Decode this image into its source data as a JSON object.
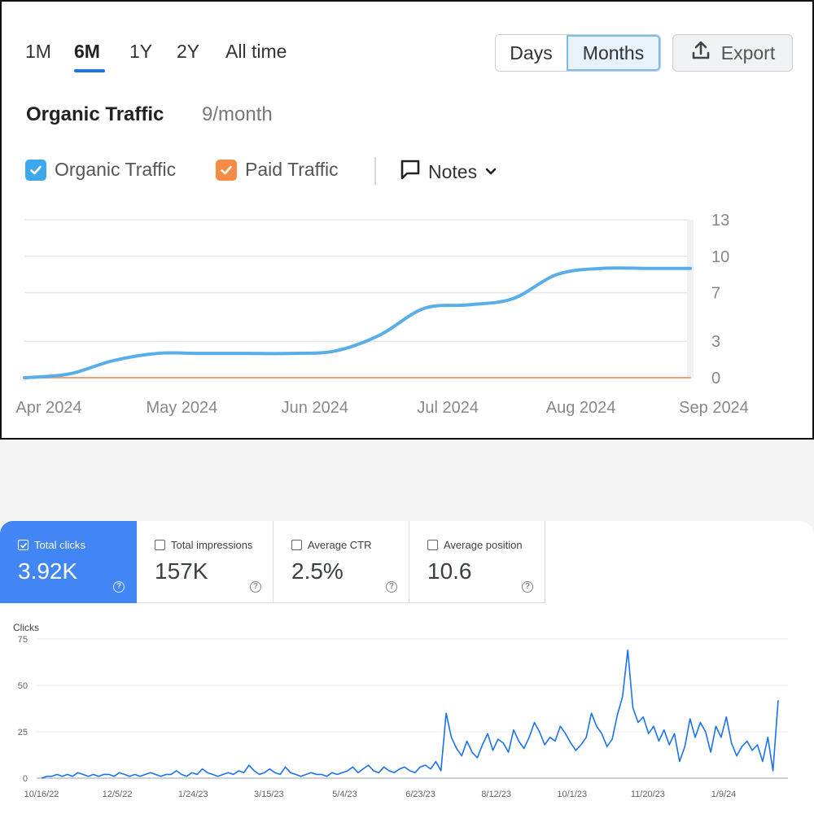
{
  "top": {
    "range_tabs": [
      "1M",
      "6M",
      "1Y",
      "2Y",
      "All time"
    ],
    "active_range": "6M",
    "granularity": {
      "days": "Days",
      "months": "Months",
      "selected": "Months"
    },
    "export_label": "Export",
    "title": "Organic Traffic",
    "subtitle": "9/month",
    "legend": {
      "organic": {
        "label": "Organic Traffic",
        "color": "#3ea8ec",
        "checked": true
      },
      "paid": {
        "label": "Paid Traffic",
        "color": "#f58b45",
        "checked": true
      }
    },
    "notes_label": "Notes",
    "accent": "#1a73e8"
  },
  "bottom": {
    "metrics": [
      {
        "label": "Total clicks",
        "value": "3.92K",
        "checked": true
      },
      {
        "label": "Total impressions",
        "value": "157K",
        "checked": false
      },
      {
        "label": "Average CTR",
        "value": "2.5%",
        "checked": false
      },
      {
        "label": "Average position",
        "value": "10.6",
        "checked": false
      }
    ],
    "active_color": "#4285f4"
  },
  "chart_data": [
    {
      "type": "line",
      "x_ticks": [
        "Apr 2024",
        "May 2024",
        "Jun 2024",
        "Jul 2024",
        "Aug 2024",
        "Sep 2024"
      ],
      "y_ticks": [
        0,
        3,
        7,
        10,
        13
      ],
      "ylim": [
        0,
        13
      ],
      "grid": true,
      "axis_side": "right",
      "series": [
        {
          "name": "Organic Traffic",
          "color": "#5aaee8",
          "values": [
            0,
            0.3,
            1.4,
            2.0,
            2.0,
            2.0,
            2.0,
            2.2,
            3.5,
            5.7,
            6.0,
            6.5,
            8.5,
            9.0,
            9.0,
            9.0
          ]
        },
        {
          "name": "Paid Traffic",
          "color": "#f2a07a",
          "values": [
            0,
            0,
            0,
            0,
            0,
            0,
            0,
            0,
            0,
            0,
            0,
            0,
            0,
            0,
            0,
            0
          ]
        }
      ]
    },
    {
      "type": "line",
      "ylabel": "Clicks",
      "x_ticks": [
        "10/16/22",
        "12/5/22",
        "1/24/23",
        "3/15/23",
        "5/4/23",
        "6/23/23",
        "8/12/23",
        "10/1/23",
        "11/20/23",
        "1/9/24"
      ],
      "y_ticks": [
        0,
        25,
        50,
        75
      ],
      "ylim": [
        0,
        75
      ],
      "grid": true,
      "series": [
        {
          "name": "Clicks",
          "color": "#1a73e8",
          "values": [
            0,
            1,
            1,
            2,
            1,
            2,
            1,
            3,
            2,
            1,
            2,
            1,
            2,
            2,
            1,
            3,
            2,
            1,
            2,
            1,
            2,
            3,
            2,
            1,
            2,
            2,
            4,
            2,
            1,
            3,
            2,
            5,
            3,
            2,
            1,
            2,
            3,
            2,
            4,
            3,
            7,
            4,
            2,
            3,
            5,
            3,
            2,
            6,
            3,
            2,
            1,
            2,
            3,
            2,
            2,
            1,
            3,
            2,
            3,
            4,
            6,
            3,
            5,
            7,
            4,
            3,
            6,
            4,
            3,
            5,
            6,
            4,
            3,
            6,
            7,
            5,
            9,
            4,
            35,
            22,
            16,
            12,
            20,
            14,
            11,
            18,
            24,
            15,
            21,
            19,
            14,
            26,
            20,
            16,
            22,
            30,
            25,
            18,
            22,
            20,
            28,
            24,
            19,
            15,
            18,
            22,
            35,
            28,
            24,
            17,
            21,
            34,
            44,
            69,
            38,
            30,
            33,
            24,
            28,
            20,
            26,
            18,
            24,
            9,
            17,
            32,
            22,
            30,
            25,
            14,
            28,
            22,
            33,
            19,
            12,
            17,
            20,
            15,
            18,
            9,
            22,
            4,
            42
          ]
        }
      ]
    }
  ]
}
